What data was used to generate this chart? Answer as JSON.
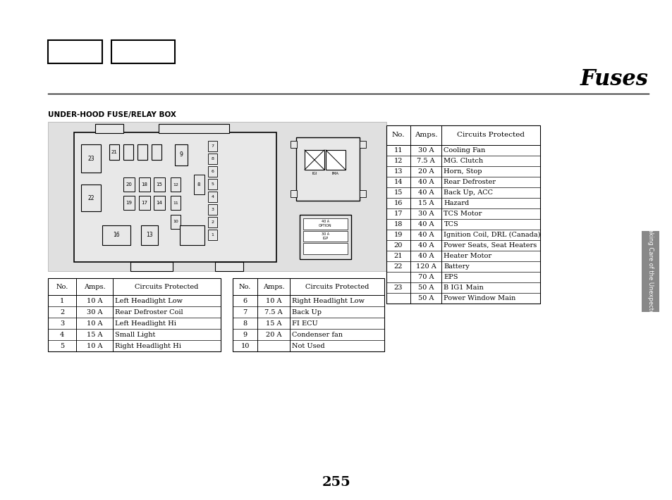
{
  "title": "Fuses",
  "page_number": "255",
  "section_label": "UNDER-HOOD FUSE/RELAY BOX",
  "side_tab_text": "Taking Care of the Unexpected",
  "bg_color": "#ffffff",
  "left_table1": {
    "headers": [
      "No.",
      "Amps.",
      "Circuits Protected"
    ],
    "rows": [
      [
        "1",
        "10 A",
        "Left Headlight Low"
      ],
      [
        "2",
        "30 A",
        "Rear Defroster Coil"
      ],
      [
        "3",
        "10 A",
        "Left Headlight Hi"
      ],
      [
        "4",
        "15 A",
        "Small Light"
      ],
      [
        "5",
        "10 A",
        "Right Headlight Hi"
      ]
    ]
  },
  "left_table2": {
    "headers": [
      "No.",
      "Amps.",
      "Circuits Protected"
    ],
    "rows": [
      [
        "6",
        "10 A",
        "Right Headlight Low"
      ],
      [
        "7",
        "7.5 A",
        "Back Up"
      ],
      [
        "8",
        "15 A",
        "FI ECU"
      ],
      [
        "9",
        "20 A",
        "Condenser fan"
      ],
      [
        "10",
        "",
        "Not Used"
      ]
    ]
  },
  "right_table": {
    "headers": [
      "No.",
      "Amps.",
      "Circuits Protected"
    ],
    "rows": [
      [
        "11",
        "30 A",
        "Cooling Fan"
      ],
      [
        "12",
        "7.5 A",
        "MG. Clutch"
      ],
      [
        "13",
        "20 A",
        "Horn, Stop"
      ],
      [
        "14",
        "40 A",
        "Rear Defroster"
      ],
      [
        "15",
        "40 A",
        "Back Up, ACC"
      ],
      [
        "16",
        "15 A",
        "Hazard"
      ],
      [
        "17",
        "30 A",
        "TCS Motor"
      ],
      [
        "18",
        "40 A",
        "TCS"
      ],
      [
        "19",
        "40 A",
        "Ignition Coil, DRL (Canada)"
      ],
      [
        "20",
        "40 A",
        "Power Seats, Seat Heaters"
      ],
      [
        "21",
        "40 A",
        "Heater Motor"
      ],
      [
        "22",
        "120 A",
        "Battery"
      ],
      [
        "",
        "70 A",
        "EPS"
      ],
      [
        "23",
        "50 A",
        "B IG1 Main"
      ],
      [
        "",
        "50 A",
        "Power Window Main"
      ]
    ]
  }
}
